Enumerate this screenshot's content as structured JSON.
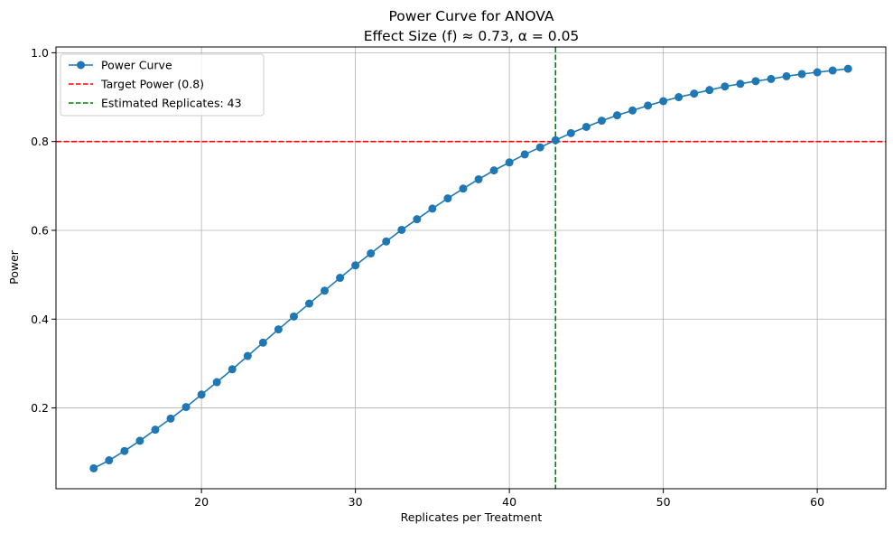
{
  "chart_data": {
    "type": "line",
    "title": "Power Curve for ANOVA",
    "subtitle": "Effect Size (f) ≈ 0.73, α = 0.05",
    "xlabel": "Replicates per Treatment",
    "ylabel": "Power",
    "xlim": [
      10.55,
      64.45
    ],
    "ylim": [
      0.018,
      1.013
    ],
    "xticks": [
      20,
      30,
      40,
      50,
      60
    ],
    "yticks": [
      0.2,
      0.4,
      0.6,
      0.8,
      1.0
    ],
    "xtick_labels": [
      "20",
      "30",
      "40",
      "50",
      "60"
    ],
    "ytick_labels": [
      "0.2",
      "0.4",
      "0.6",
      "0.8",
      "1.0"
    ],
    "grid": true,
    "legend_position": "top-left",
    "series": [
      {
        "name": "Power Curve",
        "color": "#1f77b4",
        "marker": "circle",
        "x": [
          13,
          14,
          15,
          16,
          17,
          18,
          19,
          20,
          21,
          22,
          23,
          24,
          25,
          26,
          27,
          28,
          29,
          30,
          31,
          32,
          33,
          34,
          35,
          36,
          37,
          38,
          39,
          40,
          41,
          42,
          43,
          44,
          45,
          46,
          47,
          48,
          49,
          50,
          51,
          52,
          53,
          54,
          55,
          56,
          57,
          58,
          59,
          60,
          61,
          62
        ],
        "y": [
          0.064,
          0.082,
          0.103,
          0.126,
          0.151,
          0.176,
          0.202,
          0.23,
          0.258,
          0.287,
          0.317,
          0.347,
          0.377,
          0.406,
          0.435,
          0.464,
          0.493,
          0.521,
          0.548,
          0.575,
          0.601,
          0.625,
          0.649,
          0.672,
          0.694,
          0.715,
          0.735,
          0.753,
          0.771,
          0.787,
          0.803,
          0.819,
          0.833,
          0.847,
          0.859,
          0.87,
          0.881,
          0.891,
          0.9,
          0.908,
          0.916,
          0.924,
          0.93,
          0.936,
          0.941,
          0.947,
          0.952,
          0.956,
          0.96,
          0.964
        ]
      }
    ],
    "reference_lines": [
      {
        "name": "Target Power (0.8)",
        "orientation": "horizontal",
        "value": 0.8,
        "color": "#ff0000",
        "style": "dashed"
      },
      {
        "name": "Estimated Replicates: 43",
        "orientation": "vertical",
        "value": 43,
        "color": "#008000",
        "style": "dashed"
      }
    ]
  }
}
